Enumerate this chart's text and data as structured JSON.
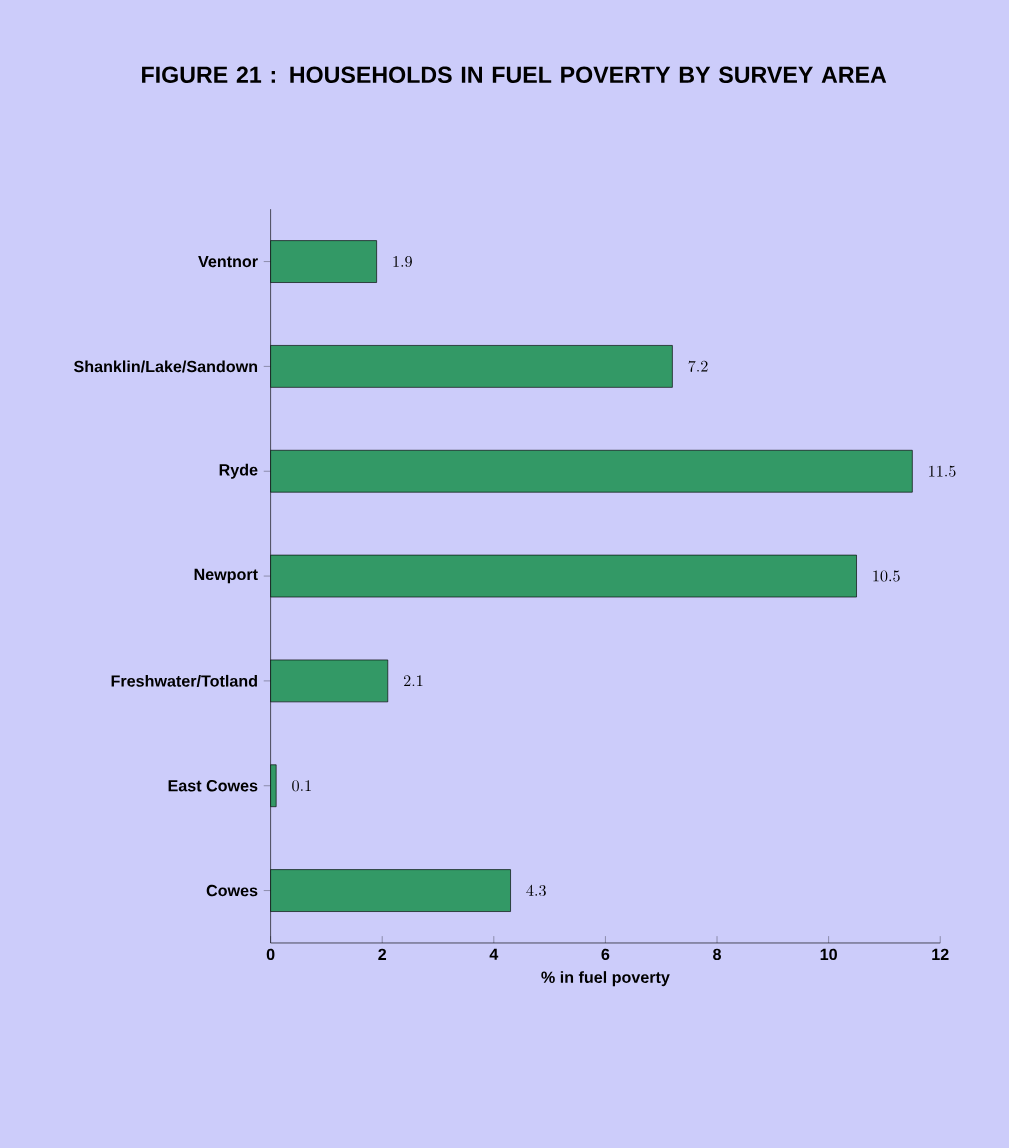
{
  "chart_data": {
    "type": "bar",
    "orientation": "horizontal",
    "title": "FIGURE 21 : HOUSEHOLDS IN FUEL POVERTY BY SURVEY AREA",
    "xlabel": "% in fuel poverty",
    "categories": [
      "Ventnor",
      "Shanklin/Lake/Sandown",
      "Ryde",
      "Newport",
      "Freshwater/Totland",
      "East Cowes",
      "Cowes"
    ],
    "values": [
      1.9,
      7.2,
      11.5,
      10.5,
      2.1,
      0.1,
      4.3
    ],
    "color": "#339966",
    "xlim": [
      0,
      12
    ],
    "xticks": [
      0,
      2,
      4,
      6,
      8,
      10,
      12
    ],
    "data_labels": true,
    "grid": false
  }
}
